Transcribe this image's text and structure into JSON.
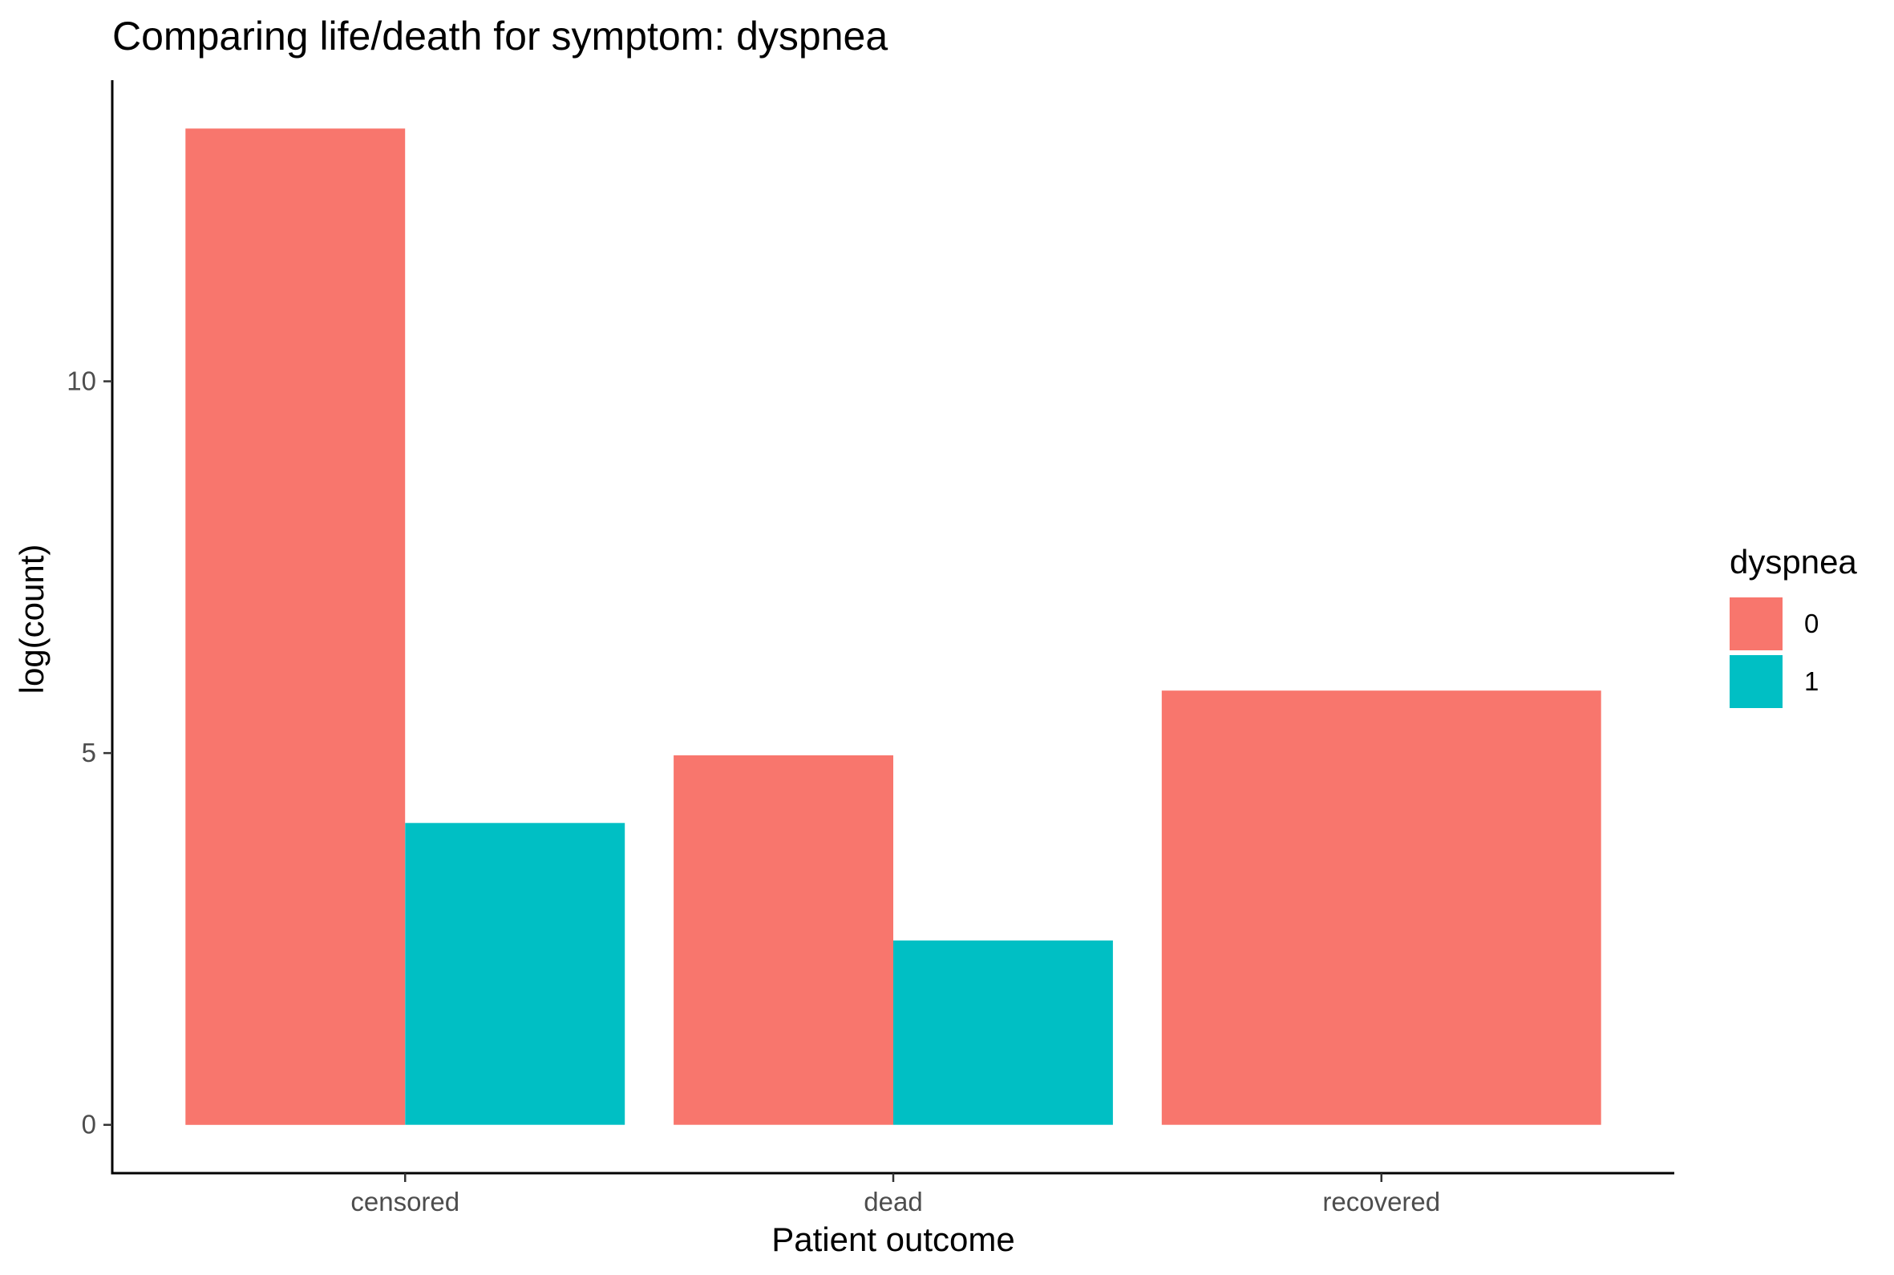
{
  "chart_data": {
    "type": "bar",
    "title": "Comparing life/death for symptom: dyspnea",
    "xlabel": "Patient outcome",
    "ylabel": "log(count)",
    "categories": [
      "censored",
      "dead",
      "recovered"
    ],
    "series": [
      {
        "name": "0",
        "color": "#F8766D",
        "values": [
          13.4,
          4.97,
          5.84
        ]
      },
      {
        "name": "1",
        "color": "#00BFC4",
        "values": [
          4.06,
          2.48,
          null
        ]
      }
    ],
    "ylim": [
      -0.65,
      14.05
    ],
    "yticks": [
      0,
      5,
      10
    ],
    "grid": false,
    "legend": {
      "title": "dyspnea",
      "position": "right",
      "entries": [
        "0",
        "1"
      ]
    }
  }
}
